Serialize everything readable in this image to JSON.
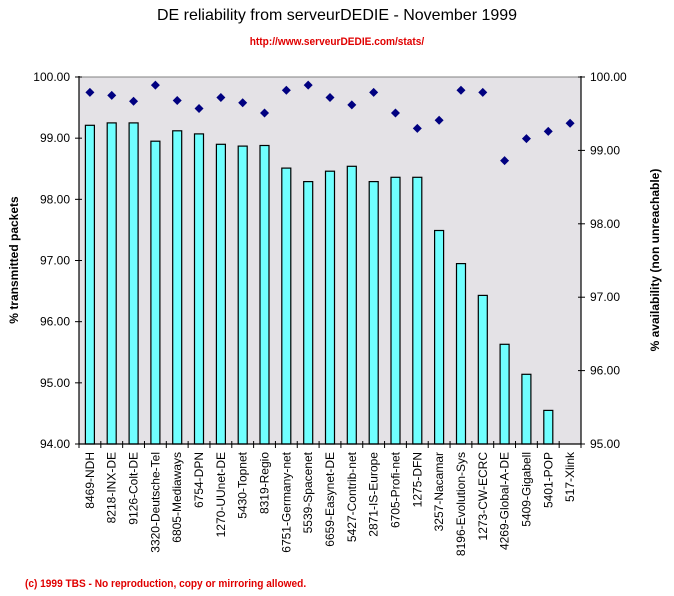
{
  "header": {
    "title": "DE reliability from serveurDEDIE - November 1999",
    "subtitle": "http://www.serveurDEDIE.com/stats/"
  },
  "footer": {
    "copyright": "(c) 1999 TBS - No reproduction, copy or mirroring allowed."
  },
  "colors": {
    "plot_background": "#e4e2e6",
    "bar_fill": "#70ffff",
    "bar_stroke": "#000000",
    "marker_fill": "#000080",
    "subtitle_color": "#e00000"
  },
  "chart_data": {
    "type": "bar",
    "title": "DE reliability from serveurDEDIE - November 1999",
    "subtitle": "http://www.serveurDEDIE.com/stats/",
    "xlabel": "",
    "categories": [
      "8469-NDH",
      "8218-INX-DE",
      "9126-Colt-DE",
      "3320-Deutsche-Tel",
      "6805-Mediaways",
      "6754-DPN",
      "1270-UUnet-DE",
      "5430-Topnet",
      "8319-Regio",
      "6751-Germany-net",
      "5539-Spacenet",
      "6659-Easynet-DE",
      "5427-Contrib-net",
      "2871-IS-Europe",
      "6705-Profi-net",
      "1275-DFN",
      "3257-Nacamar",
      "8196-Evolution-Sys",
      "1273-CW-ECRC",
      "4269-Global-A-DE",
      "5409-Gigabell",
      "5401-POP",
      "517-Xlink"
    ],
    "series": [
      {
        "name": "% transmitted packets",
        "type": "bar",
        "axis": "left",
        "values": [
          99.21,
          99.25,
          99.25,
          98.95,
          99.12,
          99.07,
          98.9,
          98.87,
          98.88,
          98.51,
          98.29,
          98.46,
          98.54,
          98.29,
          98.36,
          98.36,
          97.49,
          96.95,
          96.43,
          95.63,
          95.14,
          94.55,
          null
        ]
      },
      {
        "name": "% availability (non unreachable)",
        "type": "scatter",
        "marker": "diamond",
        "axis": "right",
        "values": [
          99.79,
          99.75,
          99.67,
          99.89,
          99.68,
          99.57,
          99.72,
          99.65,
          99.51,
          99.82,
          99.89,
          99.72,
          99.62,
          99.79,
          99.51,
          99.3,
          99.41,
          99.82,
          99.79,
          98.86,
          99.16,
          99.26,
          99.37
        ]
      }
    ],
    "y_left": {
      "label": "% transmitted packets",
      "ylim": [
        94,
        100
      ],
      "ticks": [
        "94.00",
        "95.00",
        "96.00",
        "97.00",
        "98.00",
        "99.00",
        "100.00"
      ],
      "tick_values": [
        94,
        95,
        96,
        97,
        98,
        99,
        100
      ]
    },
    "y_right": {
      "label": "% availability (non unreachable)",
      "ylim": [
        95,
        100
      ],
      "ticks": [
        "95.00",
        "96.00",
        "97.00",
        "98.00",
        "99.00",
        "100.00"
      ],
      "tick_values": [
        95,
        96,
        97,
        98,
        99,
        100
      ]
    },
    "grid": false,
    "legend": "none"
  }
}
